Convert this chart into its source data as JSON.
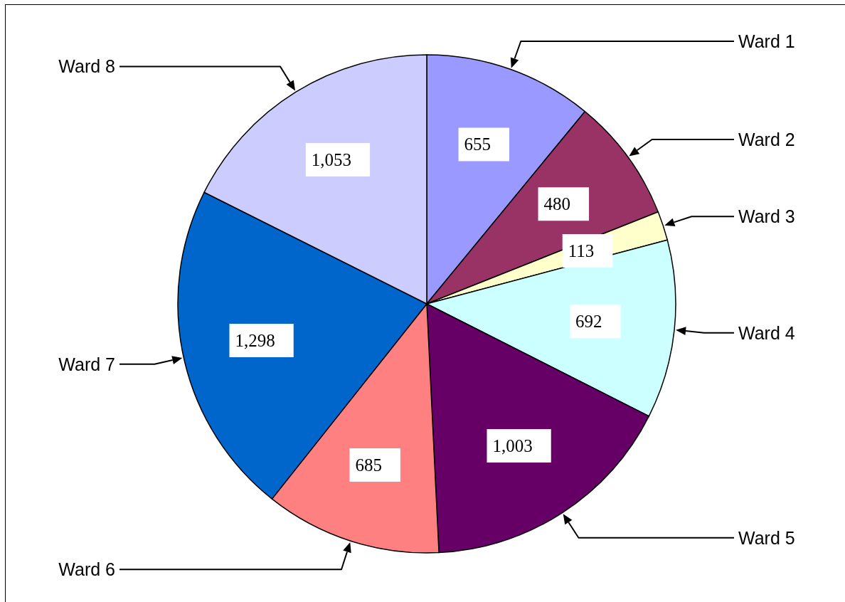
{
  "chart_data": {
    "type": "pie",
    "categories": [
      "Ward 1",
      "Ward 2",
      "Ward 3",
      "Ward 4",
      "Ward 5",
      "Ward 6",
      "Ward 7",
      "Ward 8"
    ],
    "values": [
      655,
      480,
      113,
      692,
      1003,
      685,
      1298,
      1053
    ],
    "value_labels": [
      "655",
      "480",
      "113",
      "692",
      "1,003",
      "685",
      "1,298",
      "1,053"
    ],
    "colors": [
      "#9999ff",
      "#993366",
      "#ffffcc",
      "#ccffff",
      "#660066",
      "#ff8080",
      "#0066cc",
      "#ccccff"
    ]
  }
}
